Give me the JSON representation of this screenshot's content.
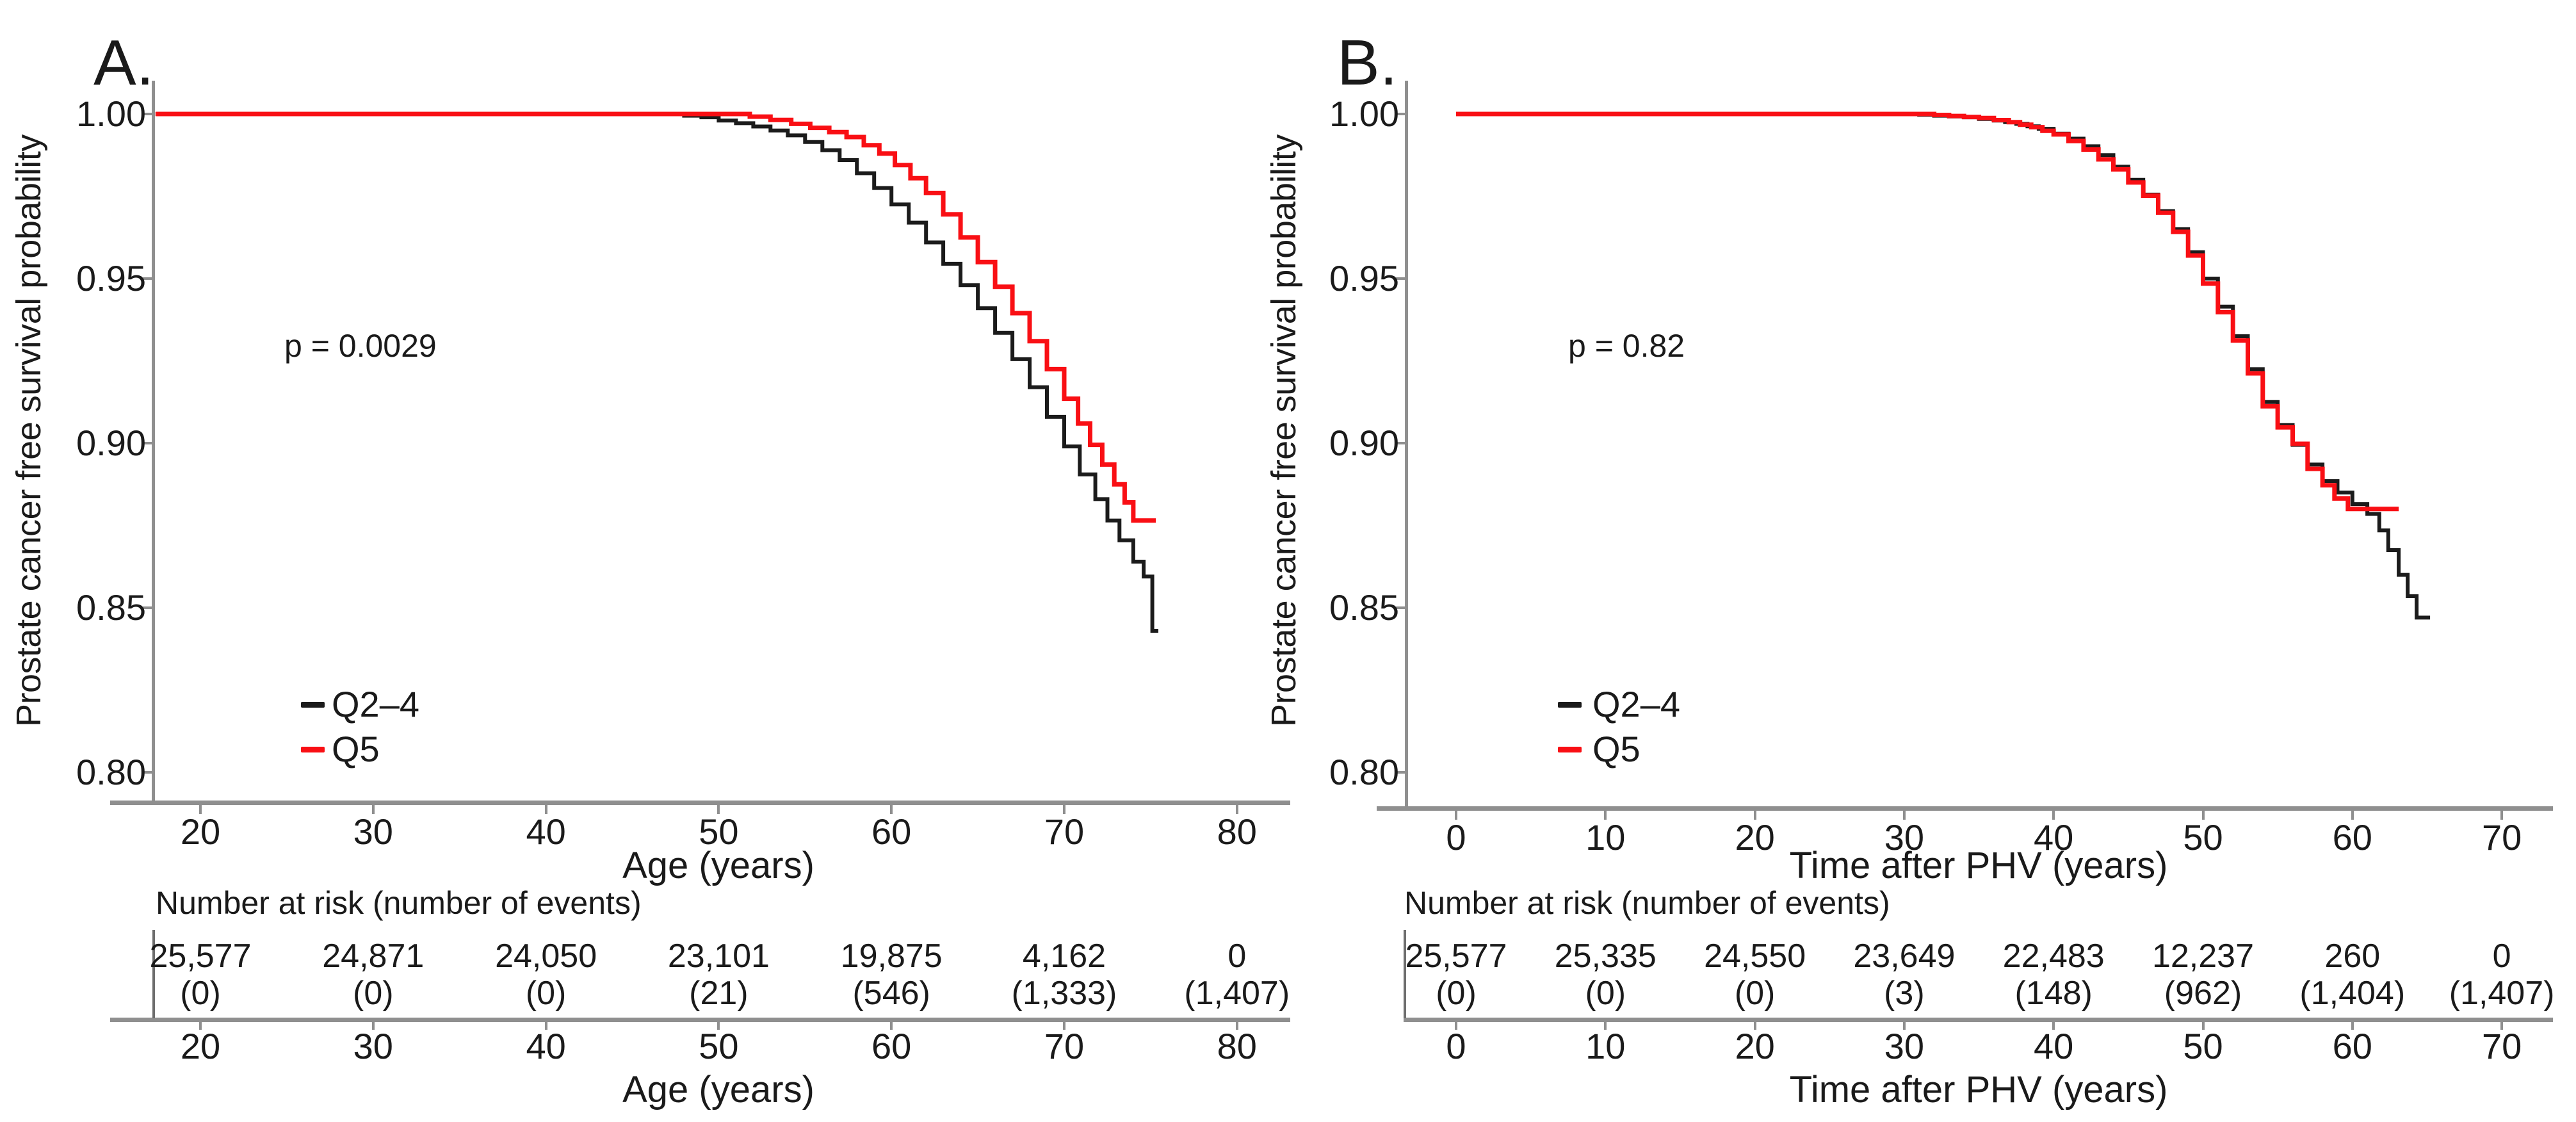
{
  "figure": {
    "background": "#ffffff",
    "colors": {
      "q24_line": "#1b1b1b",
      "q5_line": "#f90f14",
      "axis_gray": "#8f8f8f",
      "text": "#1a1a1a"
    },
    "panels": [
      {
        "label": "A.",
        "y_axis_title": "Prostate cancer free survival probability",
        "x_axis_title": "Age (years)",
        "p_value": "p = 0.0029",
        "legend": [
          {
            "label": "Q2–4",
            "color": "#1b1b1b"
          },
          {
            "label": "Q5",
            "color": "#f90f14"
          }
        ],
        "y_tick_labels": [
          "1.00",
          "0.95",
          "0.90",
          "0.85",
          "0.80"
        ],
        "x_tick_labels": [
          "20",
          "30",
          "40",
          "50",
          "60",
          "70",
          "80"
        ],
        "risk_table": {
          "header": "Number at risk (number of events)",
          "at_risk": [
            "25,577",
            "24,871",
            "24,050",
            "23,101",
            "19,875",
            "4,162",
            "0"
          ],
          "events": [
            "(0)",
            "(0)",
            "(0)",
            "(21)",
            "(546)",
            "(1,333)",
            "(1,407)"
          ],
          "x_tick_labels": [
            "20",
            "30",
            "40",
            "50",
            "60",
            "70",
            "80"
          ],
          "x_axis_title": "Age (years)"
        }
      },
      {
        "label": "B.",
        "y_axis_title": "Prostate cancer free survival probability",
        "x_axis_title": "Time after PHV (years)",
        "p_value": "p = 0.82",
        "legend": [
          {
            "label": "Q2–4",
            "color": "#1b1b1b"
          },
          {
            "label": "Q5",
            "color": "#f90f14"
          }
        ],
        "y_tick_labels": [
          "1.00",
          "0.95",
          "0.90",
          "0.85",
          "0.80"
        ],
        "x_tick_labels": [
          "0",
          "10",
          "20",
          "30",
          "40",
          "50",
          "60",
          "70"
        ],
        "risk_table": {
          "header": "Number at risk (number of events)",
          "at_risk": [
            "25,577",
            "25,335",
            "24,550",
            "23,649",
            "22,483",
            "12,237",
            "260",
            "0"
          ],
          "events": [
            "(0)",
            "(0)",
            "(0)",
            "(3)",
            "(148)",
            "(962)",
            "(1,404)",
            "(1,407)"
          ],
          "x_tick_labels": [
            "0",
            "10",
            "20",
            "30",
            "40",
            "50",
            "60",
            "70"
          ],
          "x_axis_title": "Time after PHV (years)"
        }
      }
    ]
  },
  "chart_data": [
    {
      "type": "line",
      "subtype": "kaplan-meier-step",
      "panel": "A",
      "xlabel": "Age (years)",
      "ylabel": "Prostate cancer free survival probability",
      "xlim": [
        17.3,
        83
      ],
      "ylim": [
        0.79,
        1.005
      ],
      "x_ticks": [
        20,
        30,
        40,
        50,
        60,
        70,
        80
      ],
      "y_ticks": [
        1.0,
        0.95,
        0.9,
        0.85,
        0.8
      ],
      "grid": false,
      "legend_position": "inside-bottom-left",
      "p_value_annotation": "p = 0.0029",
      "series": [
        {
          "name": "Q2–4",
          "color": "#1b1b1b",
          "points": [
            [
              17.4,
              1.0
            ],
            [
              47,
              1.0
            ],
            [
              48,
              0.9995
            ],
            [
              49,
              0.999
            ],
            [
              50,
              0.998
            ],
            [
              51,
              0.9972
            ],
            [
              52,
              0.9962
            ],
            [
              53,
              0.995
            ],
            [
              54,
              0.9935
            ],
            [
              55,
              0.9915
            ],
            [
              56,
              0.989
            ],
            [
              57,
              0.986
            ],
            [
              58,
              0.982
            ],
            [
              59,
              0.9775
            ],
            [
              60,
              0.9725
            ],
            [
              61,
              0.967
            ],
            [
              62,
              0.961
            ],
            [
              63,
              0.9545
            ],
            [
              64,
              0.948
            ],
            [
              65,
              0.941
            ],
            [
              66,
              0.9335
            ],
            [
              67,
              0.9255
            ],
            [
              68,
              0.917
            ],
            [
              69,
              0.908
            ],
            [
              70,
              0.899
            ],
            [
              70.9,
              0.8905
            ],
            [
              71.8,
              0.883
            ],
            [
              72.5,
              0.8765
            ],
            [
              73.2,
              0.8705
            ],
            [
              74,
              0.864
            ],
            [
              74.6,
              0.8595
            ],
            [
              75.1,
              0.843
            ],
            [
              75.45,
              0.843
            ]
          ]
        },
        {
          "name": "Q5",
          "color": "#f90f14",
          "points": [
            [
              17.4,
              1.0
            ],
            [
              50.5,
              1.0
            ],
            [
              51.8,
              0.9992
            ],
            [
              53,
              0.9982
            ],
            [
              54.2,
              0.997
            ],
            [
              55.3,
              0.9958
            ],
            [
              56.4,
              0.9945
            ],
            [
              57.4,
              0.993
            ],
            [
              58.4,
              0.9905
            ],
            [
              59.3,
              0.988
            ],
            [
              60.2,
              0.9845
            ],
            [
              61.1,
              0.9805
            ],
            [
              62,
              0.976
            ],
            [
              63,
              0.9695
            ],
            [
              64,
              0.9625
            ],
            [
              65,
              0.955
            ],
            [
              66,
              0.9475
            ],
            [
              67,
              0.9395
            ],
            [
              68,
              0.931
            ],
            [
              69,
              0.9225
            ],
            [
              70,
              0.9135
            ],
            [
              70.8,
              0.906
            ],
            [
              71.5,
              0.8995
            ],
            [
              72.2,
              0.8935
            ],
            [
              72.9,
              0.8875
            ],
            [
              73.5,
              0.882
            ],
            [
              74,
              0.8765
            ],
            [
              75.3,
              0.8765
            ]
          ]
        }
      ],
      "risk_table": {
        "header": "Number at risk (number of events)",
        "x": [
          20,
          30,
          40,
          50,
          60,
          70,
          80
        ],
        "at_risk": [
          25577,
          24871,
          24050,
          23101,
          19875,
          4162,
          0
        ],
        "events": [
          0,
          0,
          0,
          21,
          546,
          1333,
          1407
        ]
      }
    },
    {
      "type": "line",
      "subtype": "kaplan-meier-step",
      "panel": "B",
      "xlabel": "Time after PHV (years)",
      "ylabel": "Prostate cancer free survival probability",
      "xlim": [
        -3.5,
        73
      ],
      "ylim": [
        0.79,
        1.005
      ],
      "x_ticks": [
        0,
        10,
        20,
        30,
        40,
        50,
        60,
        70
      ],
      "y_ticks": [
        1.0,
        0.95,
        0.9,
        0.85,
        0.8
      ],
      "grid": false,
      "legend_position": "inside-bottom-left",
      "p_value_annotation": "p = 0.82",
      "series": [
        {
          "name": "Q2–4",
          "color": "#1b1b1b",
          "points": [
            [
              0,
              1.0
            ],
            [
              30,
              1.0
            ],
            [
              32,
              0.9995
            ],
            [
              34,
              0.999
            ],
            [
              36,
              0.998
            ],
            [
              37.5,
              0.997
            ],
            [
              39,
              0.9955
            ],
            [
              40,
              0.994
            ],
            [
              41,
              0.9925
            ],
            [
              42,
              0.9902
            ],
            [
              43,
              0.9875
            ],
            [
              44,
              0.984
            ],
            [
              45,
              0.98
            ],
            [
              46,
              0.9755
            ],
            [
              47,
              0.9705
            ],
            [
              48,
              0.965
            ],
            [
              49,
              0.958
            ],
            [
              50,
              0.95
            ],
            [
              51,
              0.9415
            ],
            [
              52,
              0.9325
            ],
            [
              53,
              0.9225
            ],
            [
              54,
              0.9125
            ],
            [
              55,
              0.9055
            ],
            [
              56,
              0.8995
            ],
            [
              57,
              0.8935
            ],
            [
              58,
              0.8885
            ],
            [
              59,
              0.885
            ],
            [
              60,
              0.8815
            ],
            [
              61,
              0.8785
            ],
            [
              61.8,
              0.8735
            ],
            [
              62.4,
              0.8675
            ],
            [
              63.1,
              0.86
            ],
            [
              63.7,
              0.8535
            ],
            [
              64.3,
              0.847
            ],
            [
              65.2,
              0.847
            ]
          ]
        },
        {
          "name": "Q5",
          "color": "#f90f14",
          "points": [
            [
              0,
              1.0
            ],
            [
              31,
              1.0
            ],
            [
              33,
              0.9994
            ],
            [
              35,
              0.9988
            ],
            [
              37,
              0.9975
            ],
            [
              38.5,
              0.996
            ],
            [
              40,
              0.9938
            ],
            [
              41,
              0.9918
            ],
            [
              42,
              0.9892
            ],
            [
              43,
              0.9862
            ],
            [
              44,
              0.9832
            ],
            [
              45,
              0.9792
            ],
            [
              46,
              0.9752
            ],
            [
              47,
              0.97
            ],
            [
              48,
              0.9642
            ],
            [
              49,
              0.957
            ],
            [
              50,
              0.9485
            ],
            [
              51,
              0.9398
            ],
            [
              52,
              0.9312
            ],
            [
              53,
              0.9212
            ],
            [
              54,
              0.9112
            ],
            [
              55,
              0.9048
            ],
            [
              56,
              0.8998
            ],
            [
              57,
              0.8922
            ],
            [
              58,
              0.8872
            ],
            [
              58.8,
              0.8832
            ],
            [
              59.7,
              0.88
            ],
            [
              63.1,
              0.88
            ]
          ]
        }
      ],
      "risk_table": {
        "header": "Number at risk (number of events)",
        "x": [
          0,
          10,
          20,
          30,
          40,
          50,
          60,
          70
        ],
        "at_risk": [
          25577,
          25335,
          24550,
          23649,
          22483,
          12237,
          260,
          0
        ],
        "events": [
          0,
          0,
          0,
          3,
          148,
          962,
          1404,
          1407
        ]
      }
    }
  ]
}
